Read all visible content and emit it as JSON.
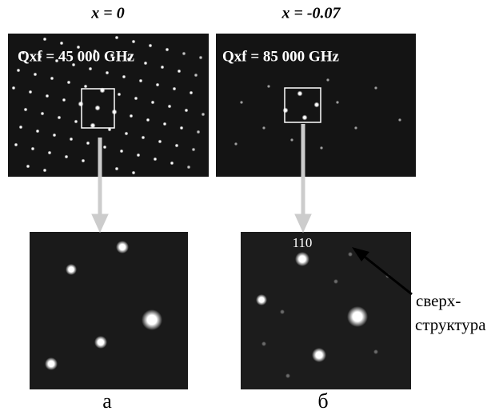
{
  "panels": [
    {
      "title": "x = 0",
      "frequency": "Qxf = 45 000 GHz",
      "caption": "а"
    },
    {
      "title": "x = -0.07",
      "frequency": "Qxf = 85 000 GHz",
      "caption": "б",
      "spot_label": "110",
      "annotation": [
        "сверх-",
        "структура"
      ]
    }
  ]
}
